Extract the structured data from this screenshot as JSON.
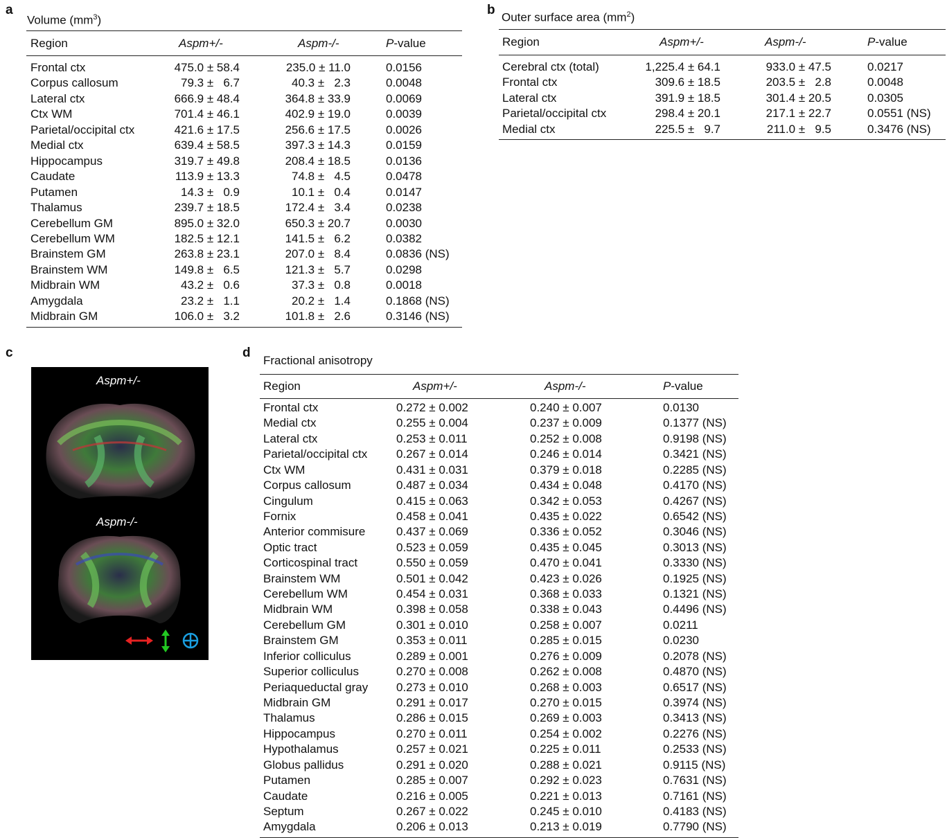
{
  "panel_a": {
    "letter": "a",
    "title": [
      "Volume (mm",
      "3",
      ")"
    ],
    "header": {
      "region": "Region",
      "het": "Aspm+/-",
      "ko": "Aspm-/-",
      "p_italic": "P",
      "p_rest": "-value"
    },
    "rows": [
      [
        "Frontal ctx",
        "475.0 ± 58.4",
        "235.0 ± 11.0",
        "0.0156"
      ],
      [
        "Corpus callosum",
        "79.3 ±   6.7",
        "40.3 ±   2.3",
        "0.0048"
      ],
      [
        "Lateral ctx",
        "666.9 ± 48.4",
        "364.8 ± 33.9",
        "0.0069"
      ],
      [
        "Ctx WM",
        "701.4 ± 46.1",
        "402.9 ± 19.0",
        "0.0039"
      ],
      [
        "Parietal/occipital ctx",
        "421.6 ± 17.5",
        "256.6 ± 17.5",
        "0.0026"
      ],
      [
        "Medial ctx",
        "639.4 ± 58.5",
        "397.3 ± 14.3",
        "0.0159"
      ],
      [
        "Hippocampus",
        "319.7 ± 49.8",
        "208.4 ± 18.5",
        "0.0136"
      ],
      [
        "Caudate",
        "113.9 ± 13.3",
        "74.8 ±   4.5",
        "0.0478"
      ],
      [
        "Putamen",
        "14.3 ±   0.9",
        "10.1 ±   0.4",
        "0.0147"
      ],
      [
        "Thalamus",
        "239.7 ± 18.5",
        "172.4 ±   3.4",
        "0.0238"
      ],
      [
        "Cerebellum GM",
        "895.0 ± 32.0",
        "650.3 ± 20.7",
        "0.0030"
      ],
      [
        "Cerebellum WM",
        "182.5 ± 12.1",
        "141.5 ±   6.2",
        "0.0382"
      ],
      [
        "Brainstem GM",
        "263.8 ± 23.1",
        "207.0 ±   8.4",
        "0.0836 (NS)"
      ],
      [
        "Brainstem WM",
        "149.8 ±   6.5",
        "121.3 ±   5.7",
        "0.0298"
      ],
      [
        "Midbrain WM",
        "43.2 ±   0.6",
        "37.3 ±   0.8",
        "0.0018"
      ],
      [
        "Amygdala",
        "23.2 ±   1.1",
        "20.2 ±   1.4",
        "0.1868 (NS)"
      ],
      [
        "Midbrain GM",
        "106.0 ±   3.2",
        "101.8 ±   2.6",
        "0.3146 (NS)"
      ]
    ]
  },
  "panel_b": {
    "letter": "b",
    "title": [
      "Outer surface area (mm",
      "2",
      ")"
    ],
    "header": {
      "region": "Region",
      "het": "Aspm+/-",
      "ko": "Aspm-/-",
      "p_italic": "P",
      "p_rest": "-value"
    },
    "rows": [
      [
        "Cerebral ctx (total)",
        "1,225.4 ± 64.1",
        "933.0 ± 47.5",
        "0.0217"
      ],
      [
        "Frontal ctx",
        "309.6 ± 18.5",
        "203.5 ±   2.8",
        "0.0048"
      ],
      [
        "Lateral ctx",
        "391.9 ± 18.5",
        "301.4 ± 20.5",
        "0.0305"
      ],
      [
        "Parietal/occipital ctx",
        "298.4 ± 20.1",
        "217.1 ± 22.7",
        "0.0551 (NS)"
      ],
      [
        "Medial ctx",
        "225.5 ±   9.7",
        "211.0 ±   9.5",
        "0.3476 (NS)"
      ]
    ]
  },
  "panel_c": {
    "letter": "c",
    "label_top": "Aspm+/-",
    "label_bottom": "Aspm-/-"
  },
  "panel_d": {
    "letter": "d",
    "title": [
      "Fractional anisotropy"
    ],
    "header": {
      "region": "Region",
      "het": "Aspm+/-",
      "ko": "Aspm-/-",
      "p_italic": "P",
      "p_rest": "-value"
    },
    "rows": [
      [
        "Frontal ctx",
        "0.272 ± 0.002",
        "0.240 ± 0.007",
        "0.0130"
      ],
      [
        "Medial ctx",
        "0.255 ± 0.004",
        "0.237 ± 0.009",
        "0.1377 (NS)"
      ],
      [
        "Lateral ctx",
        "0.253 ± 0.011",
        "0.252 ± 0.008",
        "0.9198 (NS)"
      ],
      [
        "Parietal/occipital ctx",
        "0.267 ± 0.014",
        "0.246 ± 0.014",
        "0.3421 (NS)"
      ],
      [
        "Ctx WM",
        "0.431 ± 0.031",
        "0.379 ± 0.018",
        "0.2285 (NS)"
      ],
      [
        "Corpus callosum",
        "0.487 ± 0.034",
        "0.434 ± 0.048",
        "0.4170 (NS)"
      ],
      [
        "Cingulum",
        "0.415 ± 0.063",
        "0.342 ± 0.053",
        "0.4267 (NS)"
      ],
      [
        "Fornix",
        "0.458 ± 0.041",
        "0.435 ± 0.022",
        "0.6542 (NS)"
      ],
      [
        "Anterior commisure",
        "0.437 ± 0.069",
        "0.336 ± 0.052",
        "0.3046 (NS)"
      ],
      [
        "Optic tract",
        "0.523 ± 0.059",
        "0.435 ± 0.045",
        "0.3013 (NS)"
      ],
      [
        "Corticospinal tract",
        "0.550 ± 0.059",
        "0.470 ± 0.041",
        "0.3330 (NS)"
      ],
      [
        "Brainstem WM",
        "0.501 ± 0.042",
        "0.423 ± 0.026",
        "0.1925 (NS)"
      ],
      [
        "Cerebellum WM",
        "0.454 ± 0.031",
        "0.368 ± 0.033",
        "0.1321 (NS)"
      ],
      [
        "Midbrain WM",
        "0.398 ± 0.058",
        "0.338 ± 0.043",
        "0.4496 (NS)"
      ],
      [
        "Cerebellum GM",
        "0.301 ± 0.010",
        "0.258 ± 0.007",
        "0.0211"
      ],
      [
        "Brainstem GM",
        "0.353 ± 0.011",
        "0.285 ± 0.015",
        "0.0230"
      ],
      [
        "Inferior colliculus",
        "0.289 ± 0.001",
        "0.276 ± 0.009",
        "0.2078 (NS)"
      ],
      [
        "Superior colliculus",
        "0.270 ± 0.008",
        "0.262 ± 0.008",
        "0.4870 (NS)"
      ],
      [
        "Periaqueductal gray",
        "0.273 ± 0.010",
        "0.268 ± 0.003",
        "0.6517 (NS)"
      ],
      [
        "Midbrain GM",
        "0.291 ± 0.017",
        "0.270 ± 0.015",
        "0.3974 (NS)"
      ],
      [
        "Thalamus",
        "0.286 ± 0.015",
        "0.269 ± 0.003",
        "0.3413 (NS)"
      ],
      [
        "Hippocampus",
        "0.270 ± 0.011",
        "0.254 ± 0.002",
        "0.2276 (NS)"
      ],
      [
        "Hypothalamus",
        "0.257 ± 0.021",
        "0.225 ± 0.011",
        "0.2533 (NS)"
      ],
      [
        "Globus pallidus",
        "0.291 ± 0.020",
        "0.288 ± 0.021",
        "0.9115 (NS)"
      ],
      [
        "Putamen",
        "0.285 ± 0.007",
        "0.292 ± 0.023",
        "0.7631 (NS)"
      ],
      [
        "Caudate",
        "0.216 ± 0.005",
        "0.221 ± 0.013",
        "0.7161 (NS)"
      ],
      [
        "Septum",
        "0.267 ± 0.022",
        "0.245 ± 0.010",
        "0.4183 (NS)"
      ],
      [
        "Amygdala",
        "0.206 ± 0.013",
        "0.213 ± 0.019",
        "0.7790 (NS)"
      ]
    ]
  }
}
